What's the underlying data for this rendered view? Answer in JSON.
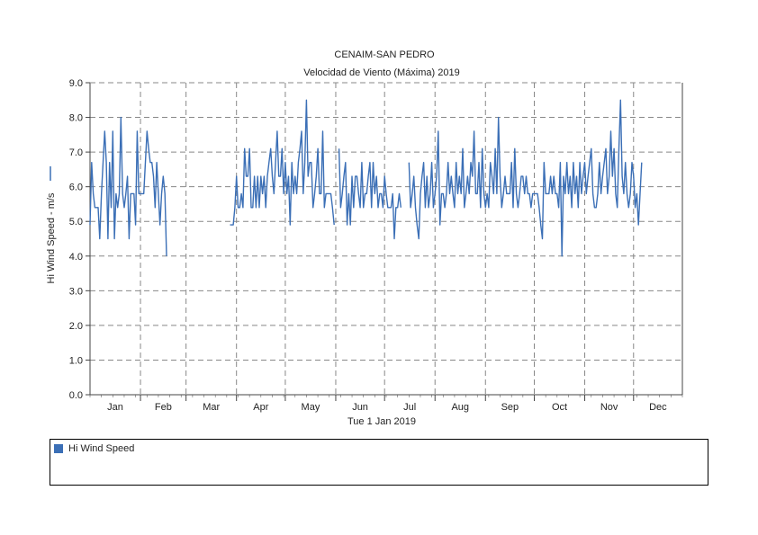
{
  "chart_data": {
    "type": "line",
    "title": "CENAIM-SAN PEDRO",
    "subtitle": "Velocidad de Viento (Máxima) 2019",
    "xlabel": "Tue 1 Jan 2019",
    "ylabel": "Hi Wind Speed - m/s",
    "ylim": [
      0,
      9
    ],
    "y_ticks": [
      "0.0",
      "1.0",
      "2.0",
      "3.0",
      "4.0",
      "5.0",
      "6.0",
      "7.0",
      "8.0",
      "9.0"
    ],
    "month_labels": [
      "Jan",
      "Feb",
      "Mar",
      "Apr",
      "May",
      "Jun",
      "Jul",
      "Aug",
      "Sep",
      "Oct",
      "Nov",
      "Dec"
    ],
    "grid": true,
    "legend_position": "bottom",
    "series": [
      {
        "name": "Hi Wind Speed",
        "color": "#3b6fb6",
        "x_day_of_year": [
          1,
          2,
          3,
          4,
          5,
          6,
          7,
          8,
          9,
          10,
          11,
          12,
          13,
          14,
          15,
          16,
          17,
          18,
          19,
          20,
          21,
          22,
          23,
          24,
          25,
          26,
          27,
          28,
          29,
          30,
          31,
          32,
          33,
          34,
          35,
          36,
          37,
          38,
          39,
          40,
          41,
          42,
          43,
          44,
          45,
          46,
          47,
          48,
          49,
          50,
          51,
          52,
          53,
          54,
          55,
          56,
          57,
          58,
          59,
          60,
          61,
          62,
          63,
          64,
          65,
          66,
          67,
          68,
          69,
          70,
          71,
          72,
          73,
          74,
          75,
          76,
          77,
          78,
          79,
          80,
          81,
          82,
          83,
          84,
          85,
          86,
          87,
          88,
          89,
          90,
          91,
          92,
          93,
          94,
          95,
          96,
          97,
          98,
          99,
          100,
          101,
          102,
          103,
          104,
          105,
          106,
          107,
          108,
          109,
          110,
          111,
          112,
          113,
          114,
          115,
          116,
          117,
          118,
          119,
          120,
          121,
          122,
          123,
          124,
          125,
          126,
          127,
          128,
          129,
          130,
          131,
          132,
          133,
          134,
          135,
          136,
          137,
          138,
          139,
          140,
          141,
          142,
          143,
          144,
          145,
          146,
          147,
          148,
          149,
          150,
          151,
          152,
          153,
          154,
          155,
          156,
          157,
          158,
          159,
          160,
          161,
          162,
          163,
          164,
          165,
          166,
          167,
          168,
          169,
          170,
          171,
          172,
          173,
          174,
          175,
          176,
          177,
          178,
          179,
          180,
          181,
          182,
          183,
          184,
          185,
          186,
          187,
          188,
          189,
          190,
          191,
          192,
          193,
          194,
          195,
          196,
          197,
          198,
          199,
          200,
          201,
          202,
          203,
          204,
          205,
          206,
          207,
          208,
          209,
          210,
          211,
          212,
          213,
          214,
          215,
          216,
          217,
          218,
          219,
          220,
          221,
          222,
          223,
          224,
          225,
          226,
          227,
          228,
          229,
          230,
          231,
          232,
          233,
          234,
          235,
          236,
          237,
          238,
          239,
          240,
          241,
          242,
          243,
          244,
          245,
          246,
          247,
          248,
          249,
          250,
          251,
          252,
          253,
          254,
          255,
          256,
          257,
          258,
          259,
          260,
          261,
          262,
          263,
          264,
          265,
          266,
          267,
          268,
          269,
          270,
          271,
          272,
          273,
          274,
          275,
          276,
          277,
          278,
          279,
          280,
          281,
          282,
          283,
          284,
          285,
          286,
          287,
          288,
          289,
          290,
          291,
          292,
          293,
          294,
          295,
          296,
          297,
          298,
          299,
          300,
          301,
          302,
          303,
          304,
          305,
          306,
          307,
          308,
          309,
          310,
          311,
          312,
          313,
          314,
          315,
          316,
          317,
          318,
          319,
          320,
          321,
          322,
          323,
          324,
          325,
          326,
          327,
          328,
          329,
          330,
          331,
          332,
          333,
          334,
          335,
          336,
          337,
          338,
          339,
          340,
          341,
          342,
          343,
          344,
          345,
          346,
          347,
          348,
          349,
          350,
          351,
          352,
          353,
          354,
          355,
          356,
          357,
          358,
          359,
          360,
          361,
          362,
          363,
          364,
          365
        ],
        "values": [
          4.9,
          6.7,
          5.8,
          5.4,
          5.4,
          5.4,
          4.5,
          5.8,
          6.7,
          7.6,
          6.7,
          4.5,
          6.7,
          5.4,
          7.6,
          4.5,
          5.8,
          5.4,
          5.8,
          8.0,
          5.8,
          5.4,
          5.8,
          6.3,
          4.5,
          5.8,
          5.8,
          5.8,
          4.9,
          7.6,
          5.8,
          5.8,
          5.8,
          5.8,
          6.7,
          7.6,
          7.1,
          6.7,
          6.7,
          6.3,
          5.4,
          6.7,
          5.8,
          4.9,
          5.8,
          6.3,
          5.8,
          4.0,
          null,
          null,
          null,
          null,
          null,
          null,
          null,
          null,
          null,
          null,
          null,
          null,
          null,
          null,
          null,
          null,
          null,
          null,
          null,
          null,
          null,
          null,
          null,
          null,
          null,
          null,
          null,
          null,
          null,
          null,
          null,
          null,
          null,
          null,
          null,
          null,
          null,
          null,
          4.9,
          4.9,
          4.9,
          5.4,
          6.3,
          5.4,
          5.4,
          5.8,
          5.4,
          7.1,
          6.3,
          6.3,
          7.1,
          5.4,
          5.4,
          6.3,
          5.4,
          6.3,
          5.4,
          6.3,
          5.8,
          6.3,
          5.4,
          6.3,
          6.7,
          7.1,
          6.3,
          5.8,
          6.7,
          7.6,
          6.3,
          6.3,
          7.1,
          5.8,
          6.7,
          5.8,
          6.3,
          4.9,
          6.7,
          5.8,
          6.3,
          5.8,
          6.7,
          7.1,
          7.6,
          5.8,
          6.7,
          8.5,
          6.3,
          6.7,
          6.7,
          5.4,
          5.8,
          6.3,
          7.1,
          5.8,
          5.8,
          7.6,
          5.4,
          5.8,
          5.8,
          5.8,
          5.8,
          5.4,
          4.9,
          null,
          null,
          7.1,
          5.4,
          5.8,
          6.3,
          6.7,
          4.9,
          5.8,
          4.9,
          6.3,
          5.4,
          6.3,
          6.3,
          5.8,
          5.4,
          6.7,
          5.4,
          5.8,
          5.8,
          6.3,
          6.7,
          5.4,
          6.7,
          5.8,
          6.3,
          5.4,
          5.8,
          5.8,
          5.4,
          6.3,
          5.8,
          5.4,
          5.4,
          5.4,
          5.8,
          4.5,
          5.4,
          5.4,
          5.8,
          5.4,
          null,
          null,
          null,
          null,
          6.7,
          5.4,
          5.8,
          6.3,
          5.4,
          4.9,
          4.5,
          5.8,
          6.3,
          6.7,
          5.4,
          6.3,
          5.4,
          5.8,
          6.7,
          5.4,
          5.8,
          6.3,
          7.6,
          4.9,
          5.8,
          5.8,
          5.4,
          5.8,
          6.7,
          5.8,
          6.3,
          5.8,
          5.4,
          6.7,
          5.8,
          6.3,
          5.8,
          7.1,
          5.4,
          5.8,
          6.3,
          5.8,
          6.7,
          6.3,
          7.6,
          5.8,
          5.8,
          6.7,
          5.4,
          7.1,
          5.8,
          5.4,
          5.8,
          5.4,
          6.7,
          6.3,
          5.8,
          7.1,
          5.8,
          8.0,
          6.3,
          5.4,
          5.8,
          6.3,
          5.8,
          5.8,
          5.8,
          6.7,
          5.4,
          7.1,
          5.8,
          5.4,
          5.8,
          6.3,
          6.3,
          5.8,
          6.3,
          5.8,
          5.8,
          5.4,
          5.8,
          5.8,
          5.8,
          5.8,
          5.4,
          4.9,
          4.5,
          6.7,
          5.8,
          5.8,
          5.8,
          6.3,
          5.8,
          6.3,
          5.8,
          5.8,
          5.4,
          6.7,
          4.0,
          6.3,
          5.8,
          6.7,
          5.8,
          6.3,
          5.4,
          6.7,
          5.8,
          6.3,
          5.4,
          6.7,
          5.8,
          6.3,
          6.7,
          5.8,
          6.3,
          6.7,
          7.1,
          5.8,
          5.4,
          5.4,
          5.8,
          6.7,
          5.8,
          6.3,
          6.7,
          7.1,
          5.8,
          6.3,
          7.6,
          6.3,
          7.1,
          5.8,
          5.4,
          7.1,
          8.5,
          6.3,
          5.8,
          6.7,
          5.8,
          5.4,
          5.8,
          6.7,
          6.3,
          5.4,
          5.8,
          4.9,
          5.8,
          6.7
        ]
      }
    ]
  },
  "legend": {
    "label": "Hi Wind Speed"
  }
}
